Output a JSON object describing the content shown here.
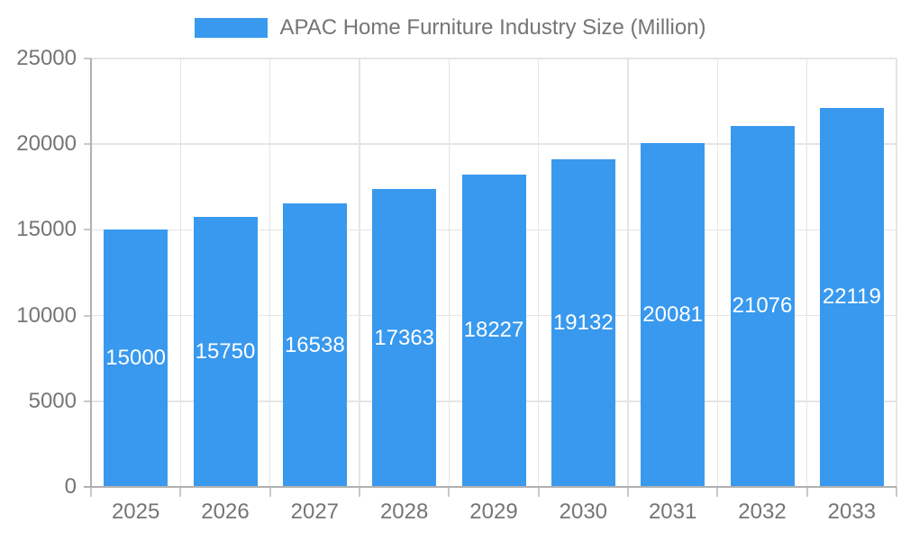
{
  "chart_data": {
    "type": "bar",
    "title": "APAC Home Furniture Industry Size (Million)",
    "categories": [
      "2025",
      "2026",
      "2027",
      "2028",
      "2029",
      "2030",
      "2031",
      "2032",
      "2033"
    ],
    "values": [
      15000,
      15750,
      16538,
      17363,
      18227,
      19132,
      20081,
      21076,
      22119
    ],
    "xlabel": "",
    "ylabel": "",
    "ylim": [
      0,
      25000
    ],
    "yticks": [
      0,
      5000,
      10000,
      15000,
      20000,
      25000
    ],
    "grid": true,
    "legend_position": "top-center",
    "value_label_position": "inside-center",
    "colors": {
      "bar": "#3899EE",
      "value_label": "#FFFFFF",
      "axis_text": "#757575",
      "grid_line": "#E5E5E5",
      "axis_line": "#B0B0B0",
      "tick_line": "#C9C9C9",
      "background": "#FFFFFF"
    }
  }
}
